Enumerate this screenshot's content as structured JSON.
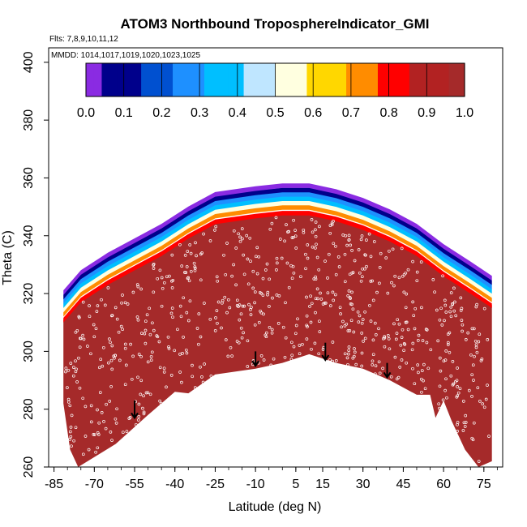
{
  "chart_data": {
    "type": "contour",
    "title": "ATOM3 Northbound TroposphereIndicator_GMI",
    "subtitle_lines": [
      "Flts: 7,8,9,10,11,12",
      "MMDD: 1014,1017,1019,1020,1023,1025"
    ],
    "xlabel": "Latitude (deg N)",
    "ylabel": "Theta (C)",
    "xlim": [
      -87,
      82
    ],
    "ylim": [
      260,
      405
    ],
    "x_ticks": [
      -85,
      -70,
      -55,
      -40,
      -25,
      -10,
      5,
      15,
      30,
      45,
      60,
      75
    ],
    "y_ticks": [
      260,
      280,
      300,
      320,
      340,
      360,
      380,
      400
    ],
    "colorbar": {
      "range": [
        0,
        1
      ],
      "tick_labels": [
        "0.0",
        "0.1",
        "0.2",
        "0.3",
        "0.4",
        "0.5",
        "0.6",
        "0.7",
        "0.8",
        "0.9",
        "1.0"
      ],
      "colors": [
        "#8a2be2",
        "#00008b",
        "#0050d0",
        "#1e90ff",
        "#00bfff",
        "#bfe6ff",
        "#ffffe0",
        "#ffd700",
        "#ff8c00",
        "#ff0000",
        "#b22222",
        "#a52a2a"
      ]
    },
    "upper_boundary": [
      {
        "x": -81.5,
        "y": 311
      },
      {
        "x": -75,
        "y": 318
      },
      {
        "x": -65,
        "y": 324
      },
      {
        "x": -55,
        "y": 329
      },
      {
        "x": -45,
        "y": 334
      },
      {
        "x": -35,
        "y": 340
      },
      {
        "x": -25,
        "y": 345
      },
      {
        "x": -10,
        "y": 347
      },
      {
        "x": 0,
        "y": 348
      },
      {
        "x": 10,
        "y": 348
      },
      {
        "x": 20,
        "y": 346
      },
      {
        "x": 30,
        "y": 343
      },
      {
        "x": 40,
        "y": 339
      },
      {
        "x": 50,
        "y": 334
      },
      {
        "x": 60,
        "y": 327
      },
      {
        "x": 70,
        "y": 321
      },
      {
        "x": 78,
        "y": 316
      }
    ],
    "lower_boundary": [
      {
        "x": -81.5,
        "y": 282
      },
      {
        "x": -79,
        "y": 266
      },
      {
        "x": -76,
        "y": 260
      },
      {
        "x": -62,
        "y": 268
      },
      {
        "x": -50,
        "y": 278
      },
      {
        "x": -40,
        "y": 286
      },
      {
        "x": -35,
        "y": 285.5
      },
      {
        "x": -25,
        "y": 292
      },
      {
        "x": -10,
        "y": 294
      },
      {
        "x": 0,
        "y": 296
      },
      {
        "x": 10,
        "y": 299
      },
      {
        "x": 20,
        "y": 296
      },
      {
        "x": 30,
        "y": 294
      },
      {
        "x": 40,
        "y": 290
      },
      {
        "x": 50,
        "y": 285
      },
      {
        "x": 55,
        "y": 285
      },
      {
        "x": 57,
        "y": 277
      },
      {
        "x": 60,
        "y": 283
      },
      {
        "x": 63,
        "y": 276
      },
      {
        "x": 68,
        "y": 266
      },
      {
        "x": 73,
        "y": 260
      },
      {
        "x": 78,
        "y": 262
      },
      {
        "x": 78,
        "y": 316
      }
    ],
    "transition_bands": [
      {
        "value": 0.85,
        "y_offset": -1.0
      },
      {
        "value": 0.7,
        "y_offset": 1.0
      },
      {
        "value": 0.55,
        "y_offset": 2.5
      },
      {
        "value": 0.4,
        "y_offset": 4.0
      },
      {
        "value": 0.25,
        "y_offset": 5.5
      },
      {
        "value": 0.1,
        "y_offset": 7.0
      },
      {
        "value": 0.02,
        "y_offset": 8.5
      }
    ],
    "arrows": [
      {
        "x": -55,
        "y_top": 283,
        "y_bottom": 277
      },
      {
        "x": -10,
        "y_top": 300,
        "y_bottom": 295
      },
      {
        "x": 16,
        "y_top": 303,
        "y_bottom": 297
      },
      {
        "x": 39,
        "y_top": 296,
        "y_bottom": 291
      }
    ],
    "point_count": 700,
    "point_color": "#ffffff",
    "grid": false,
    "legend": "top"
  }
}
